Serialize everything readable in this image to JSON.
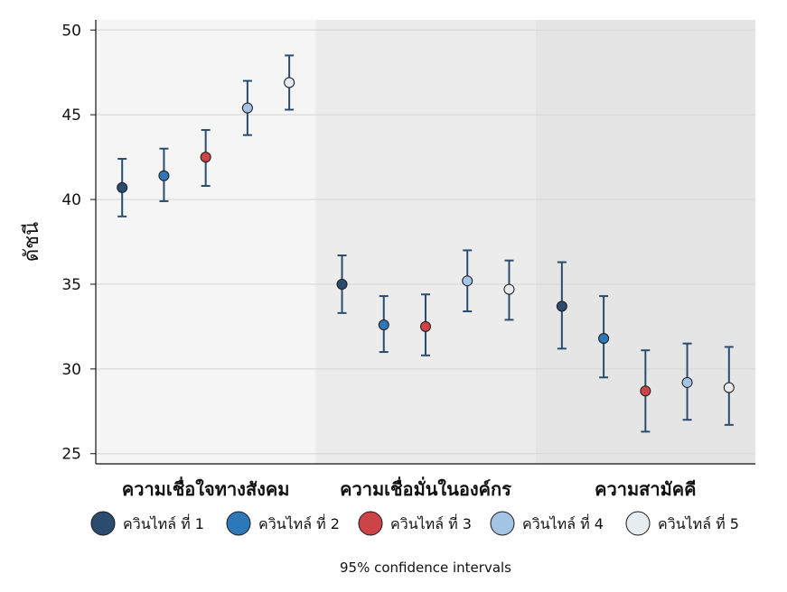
{
  "chart_data": {
    "type": "scatter",
    "title": "",
    "ylabel": "ดัชนี",
    "xlabel": "",
    "ylim": [
      24.4,
      50.6
    ],
    "yticks": [
      25,
      30,
      35,
      40,
      45,
      50
    ],
    "grid": true,
    "legend_position": "bottom",
    "note": "95% confidence intervals",
    "groups": [
      "ความเชื่อใจทางสังคม",
      "ความเชื่อมั่นในองค์กร",
      "ความสามัคคี"
    ],
    "group_backgrounds": [
      "#f5f5f5",
      "#ececec",
      "#e5e5e5"
    ],
    "series": [
      {
        "name": "ควินไทล์ ที่ 1",
        "color": "#2b4c6f",
        "values": [
          40.7,
          35.0,
          33.7
        ],
        "lower": [
          39.0,
          33.3,
          31.2
        ],
        "upper": [
          42.4,
          36.7,
          36.3
        ]
      },
      {
        "name": "ควินไทล์ ที่ 2",
        "color": "#2d78b7",
        "values": [
          41.4,
          32.6,
          31.8
        ],
        "lower": [
          39.9,
          31.0,
          29.5
        ],
        "upper": [
          43.0,
          34.3,
          34.3
        ]
      },
      {
        "name": "ควินไทล์ ที่ 3",
        "color": "#cc4448",
        "values": [
          42.5,
          32.5,
          28.7
        ],
        "lower": [
          40.8,
          30.8,
          26.3
        ],
        "upper": [
          44.1,
          34.4,
          31.1
        ]
      },
      {
        "name": "ควินไทล์ ที่ 4",
        "color": "#a4c4e6",
        "values": [
          45.4,
          35.2,
          29.2
        ],
        "lower": [
          43.8,
          33.4,
          27.0
        ],
        "upper": [
          47.0,
          37.0,
          31.5
        ]
      },
      {
        "name": "ควินไทล์ ที่ 5",
        "color": "#e6ecf0",
        "values": [
          46.9,
          34.7,
          28.9
        ],
        "lower": [
          45.3,
          32.9,
          26.7
        ],
        "upper": [
          48.5,
          36.4,
          31.3
        ]
      }
    ],
    "errorbar_color": "#2b4c6f"
  }
}
